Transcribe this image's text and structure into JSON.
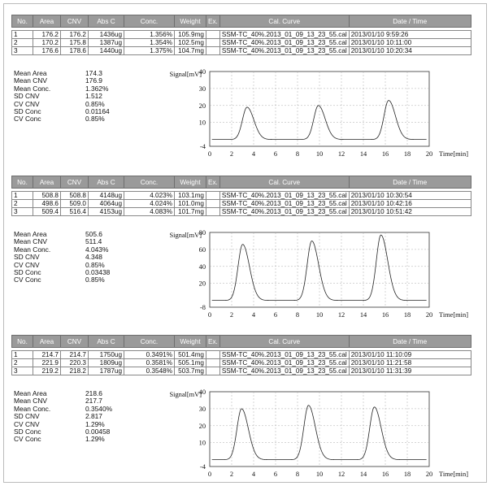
{
  "table_headers": [
    "No.",
    "Area",
    "CNV",
    "Abs C",
    "Conc.",
    "Weight",
    "Ex.",
    "Cal. Curve",
    "Date / Time"
  ],
  "blocks": [
    {
      "rows": [
        {
          "no": "1",
          "area": "176.2",
          "cnv": "176.2",
          "absc": "1436ug",
          "conc": "1.356%",
          "weight": "105.9mg",
          "ex": "",
          "curve": "SSM-TC_40%.2013_01_09_13_23_55.cal",
          "date": "2013/01/10 9:59:26"
        },
        {
          "no": "2",
          "area": "170.2",
          "cnv": "175.8",
          "absc": "1387ug",
          "conc": "1.354%",
          "weight": "102.5mg",
          "ex": "",
          "curve": "SSM-TC_40%.2013_01_09_13_23_55.cal",
          "date": "2013/01/10 10:11:00"
        },
        {
          "no": "3",
          "area": "176.6",
          "cnv": "178.6",
          "absc": "1440ug",
          "conc": "1.375%",
          "weight": "104.7mg",
          "ex": "",
          "curve": "SSM-TC_40%.2013_01_09_13_23_55.cal",
          "date": "2013/01/10 10:20:34"
        }
      ],
      "stats": [
        {
          "label": "Mean Area",
          "value": "174.3"
        },
        {
          "label": "Mean CNV",
          "value": "176.9"
        },
        {
          "label": "Mean Conc.",
          "value": "1.362%"
        },
        {
          "label": "SD CNV",
          "value": "1.512"
        },
        {
          "label": "CV CNV",
          "value": "0.85%"
        },
        {
          "label": "SD Conc",
          "value": "0.01164"
        },
        {
          "label": "CV Conc",
          "value": "0.85%"
        }
      ]
    },
    {
      "rows": [
        {
          "no": "1",
          "area": "508.8",
          "cnv": "508.8",
          "absc": "4148ug",
          "conc": "4.023%",
          "weight": "103.1mg",
          "ex": "",
          "curve": "SSM-TC_40%.2013_01_09_13_23_55.cal",
          "date": "2013/01/10 10:30:54"
        },
        {
          "no": "2",
          "area": "498.6",
          "cnv": "509.0",
          "absc": "4064ug",
          "conc": "4.024%",
          "weight": "101.0mg",
          "ex": "",
          "curve": "SSM-TC_40%.2013_01_09_13_23_55.cal",
          "date": "2013/01/10 10:42:16"
        },
        {
          "no": "3",
          "area": "509.4",
          "cnv": "516.4",
          "absc": "4153ug",
          "conc": "4.083%",
          "weight": "101.7mg",
          "ex": "",
          "curve": "SSM-TC_40%.2013_01_09_13_23_55.cal",
          "date": "2013/01/10 10:51:42"
        }
      ],
      "stats": [
        {
          "label": "Mean Area",
          "value": "505.6"
        },
        {
          "label": "Mean CNV",
          "value": "511.4"
        },
        {
          "label": "Mean Conc.",
          "value": "4.043%"
        },
        {
          "label": "SD CNV",
          "value": "4.348"
        },
        {
          "label": "CV CNV",
          "value": "0.85%"
        },
        {
          "label": "SD Conc",
          "value": "0.03438"
        },
        {
          "label": "CV Conc",
          "value": "0.85%"
        }
      ]
    },
    {
      "rows": [
        {
          "no": "1",
          "area": "214.7",
          "cnv": "214.7",
          "absc": "1750ug",
          "conc": "0.3491%",
          "weight": "501.4mg",
          "ex": "",
          "curve": "SSM-TC_40%.2013_01_09_13_23_55.cal",
          "date": "2013/01/10 11:10:09"
        },
        {
          "no": "2",
          "area": "221.9",
          "cnv": "220.3",
          "absc": "1809ug",
          "conc": "0.3581%",
          "weight": "505.1mg",
          "ex": "",
          "curve": "SSM-TC_40%.2013_01_09_13_23_55.cal",
          "date": "2013/01/10 11:21:58"
        },
        {
          "no": "3",
          "area": "219.2",
          "cnv": "218.2",
          "absc": "1787ug",
          "conc": "0.3548%",
          "weight": "503.7mg",
          "ex": "",
          "curve": "SSM-TC_40%.2013_01_09_13_23_55.cal",
          "date": "2013/01/10 11:31:39"
        }
      ],
      "stats": [
        {
          "label": "Mean Area",
          "value": "218.6"
        },
        {
          "label": "Mean CNV",
          "value": "217.7"
        },
        {
          "label": "Mean Conc.",
          "value": "0.3540%"
        },
        {
          "label": "SD CNV",
          "value": "2.817"
        },
        {
          "label": "CV CNV",
          "value": "1.29%"
        },
        {
          "label": "SD Conc",
          "value": "0.00458"
        },
        {
          "label": "CV Conc",
          "value": "1.29%"
        }
      ]
    }
  ],
  "chart_data": [
    {
      "type": "line",
      "ylabel": "Signal[mV]",
      "xlabel": "Time[min]",
      "xlim": [
        0,
        20
      ],
      "ylim": [
        -4,
        40
      ],
      "x_ticks": [
        "0",
        "2",
        "4",
        "6",
        "8",
        "10",
        "12",
        "14",
        "16",
        "18",
        "20"
      ],
      "y_ticks": [
        "40",
        "30",
        "20",
        "10",
        "-4"
      ],
      "grid": true,
      "baseline": 0,
      "peaks": [
        {
          "x": 3.4,
          "y": 19
        },
        {
          "x": 9.9,
          "y": 20
        },
        {
          "x": 16.3,
          "y": 23
        }
      ]
    },
    {
      "type": "line",
      "ylabel": "Signal[mV]",
      "xlabel": "Time[min]",
      "xlim": [
        0,
        20
      ],
      "ylim": [
        -8,
        80
      ],
      "x_ticks": [
        "0",
        "2",
        "4",
        "6",
        "8",
        "10",
        "12",
        "14",
        "16",
        "18",
        "20"
      ],
      "y_ticks": [
        "80",
        "60",
        "40",
        "20",
        "-8"
      ],
      "grid": true,
      "baseline": 0,
      "peaks": [
        {
          "x": 3.0,
          "y": 66
        },
        {
          "x": 9.3,
          "y": 70
        },
        {
          "x": 15.6,
          "y": 77
        }
      ]
    },
    {
      "type": "line",
      "ylabel": "Signal[mV]",
      "xlabel": "Time[min]",
      "xlim": [
        0,
        20
      ],
      "ylim": [
        -4,
        40
      ],
      "x_ticks": [
        "0",
        "2",
        "4",
        "6",
        "8",
        "10",
        "12",
        "14",
        "16",
        "18",
        "20"
      ],
      "y_ticks": [
        "40",
        "30",
        "20",
        "10",
        "-4"
      ],
      "grid": true,
      "baseline": 0,
      "peaks": [
        {
          "x": 2.9,
          "y": 30
        },
        {
          "x": 9.0,
          "y": 32
        },
        {
          "x": 15.0,
          "y": 31
        }
      ]
    }
  ]
}
